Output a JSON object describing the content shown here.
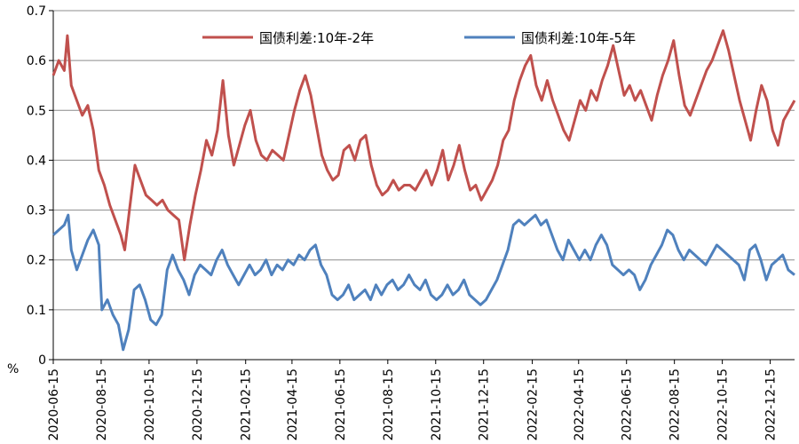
{
  "chart_data": {
    "type": "line",
    "title": "",
    "xlabel": "",
    "ylabel": "%",
    "ylim": [
      0,
      0.7
    ],
    "yticks": [
      "0",
      "0.1",
      "0.2",
      "0.3",
      "0.4",
      "0.5",
      "0.6",
      "0.7"
    ],
    "xticks": [
      "2020-06-15",
      "2020-08-15",
      "2020-10-15",
      "2020-12-15",
      "2021-02-15",
      "2021-04-15",
      "2021-06-15",
      "2021-08-15",
      "2021-10-15",
      "2021-12-15",
      "2022-02-15",
      "2022-04-15",
      "2022-06-15",
      "2022-08-15",
      "2022-10-15",
      "2022-12-15"
    ],
    "grid": "horizontal",
    "legend_position": "top",
    "x_start": "2020-06-15",
    "x_end": "2023-01-15",
    "series": [
      {
        "name": "国债利差:10年-2年",
        "color": "#c0504d",
        "points": [
          [
            "2020-06-15",
            0.57
          ],
          [
            "2020-06-22",
            0.6
          ],
          [
            "2020-06-29",
            0.58
          ],
          [
            "2020-07-03",
            0.65
          ],
          [
            "2020-07-08",
            0.55
          ],
          [
            "2020-07-15",
            0.52
          ],
          [
            "2020-07-22",
            0.49
          ],
          [
            "2020-07-29",
            0.51
          ],
          [
            "2020-08-05",
            0.46
          ],
          [
            "2020-08-12",
            0.38
          ],
          [
            "2020-08-19",
            0.35
          ],
          [
            "2020-08-26",
            0.31
          ],
          [
            "2020-09-02",
            0.28
          ],
          [
            "2020-09-09",
            0.25
          ],
          [
            "2020-09-14",
            0.22
          ],
          [
            "2020-09-20",
            0.3
          ],
          [
            "2020-09-27",
            0.39
          ],
          [
            "2020-10-04",
            0.36
          ],
          [
            "2020-10-11",
            0.33
          ],
          [
            "2020-10-18",
            0.32
          ],
          [
            "2020-10-25",
            0.31
          ],
          [
            "2020-11-01",
            0.32
          ],
          [
            "2020-11-08",
            0.3
          ],
          [
            "2020-11-15",
            0.29
          ],
          [
            "2020-11-22",
            0.28
          ],
          [
            "2020-11-29",
            0.2
          ],
          [
            "2020-12-06",
            0.27
          ],
          [
            "2020-12-13",
            0.33
          ],
          [
            "2020-12-20",
            0.38
          ],
          [
            "2020-12-27",
            0.44
          ],
          [
            "2021-01-03",
            0.41
          ],
          [
            "2021-01-10",
            0.46
          ],
          [
            "2021-01-17",
            0.56
          ],
          [
            "2021-01-24",
            0.45
          ],
          [
            "2021-01-31",
            0.39
          ],
          [
            "2021-02-07",
            0.43
          ],
          [
            "2021-02-14",
            0.47
          ],
          [
            "2021-02-21",
            0.5
          ],
          [
            "2021-02-28",
            0.44
          ],
          [
            "2021-03-07",
            0.41
          ],
          [
            "2021-03-14",
            0.4
          ],
          [
            "2021-03-21",
            0.42
          ],
          [
            "2021-03-28",
            0.41
          ],
          [
            "2021-04-04",
            0.4
          ],
          [
            "2021-04-11",
            0.45
          ],
          [
            "2021-04-18",
            0.5
          ],
          [
            "2021-04-25",
            0.54
          ],
          [
            "2021-05-02",
            0.57
          ],
          [
            "2021-05-09",
            0.53
          ],
          [
            "2021-05-16",
            0.47
          ],
          [
            "2021-05-23",
            0.41
          ],
          [
            "2021-05-30",
            0.38
          ],
          [
            "2021-06-06",
            0.36
          ],
          [
            "2021-06-13",
            0.37
          ],
          [
            "2021-06-20",
            0.42
          ],
          [
            "2021-06-27",
            0.43
          ],
          [
            "2021-07-04",
            0.4
          ],
          [
            "2021-07-11",
            0.44
          ],
          [
            "2021-07-18",
            0.45
          ],
          [
            "2021-07-25",
            0.39
          ],
          [
            "2021-08-01",
            0.35
          ],
          [
            "2021-08-08",
            0.33
          ],
          [
            "2021-08-15",
            0.34
          ],
          [
            "2021-08-22",
            0.36
          ],
          [
            "2021-08-29",
            0.34
          ],
          [
            "2021-09-05",
            0.35
          ],
          [
            "2021-09-12",
            0.35
          ],
          [
            "2021-09-19",
            0.34
          ],
          [
            "2021-09-26",
            0.36
          ],
          [
            "2021-10-03",
            0.38
          ],
          [
            "2021-10-10",
            0.35
          ],
          [
            "2021-10-17",
            0.38
          ],
          [
            "2021-10-24",
            0.42
          ],
          [
            "2021-10-31",
            0.36
          ],
          [
            "2021-11-07",
            0.39
          ],
          [
            "2021-11-14",
            0.43
          ],
          [
            "2021-11-21",
            0.38
          ],
          [
            "2021-11-28",
            0.34
          ],
          [
            "2021-12-05",
            0.35
          ],
          [
            "2021-12-12",
            0.32
          ],
          [
            "2021-12-19",
            0.34
          ],
          [
            "2021-12-26",
            0.36
          ],
          [
            "2022-01-02",
            0.39
          ],
          [
            "2022-01-09",
            0.44
          ],
          [
            "2022-01-16",
            0.46
          ],
          [
            "2022-01-23",
            0.52
          ],
          [
            "2022-01-30",
            0.56
          ],
          [
            "2022-02-06",
            0.59
          ],
          [
            "2022-02-13",
            0.61
          ],
          [
            "2022-02-20",
            0.55
          ],
          [
            "2022-02-27",
            0.52
          ],
          [
            "2022-03-06",
            0.56
          ],
          [
            "2022-03-13",
            0.52
          ],
          [
            "2022-03-20",
            0.49
          ],
          [
            "2022-03-27",
            0.46
          ],
          [
            "2022-04-03",
            0.44
          ],
          [
            "2022-04-10",
            0.48
          ],
          [
            "2022-04-17",
            0.52
          ],
          [
            "2022-04-24",
            0.5
          ],
          [
            "2022-05-01",
            0.54
          ],
          [
            "2022-05-08",
            0.52
          ],
          [
            "2022-05-15",
            0.56
          ],
          [
            "2022-05-22",
            0.59
          ],
          [
            "2022-05-29",
            0.63
          ],
          [
            "2022-06-05",
            0.58
          ],
          [
            "2022-06-12",
            0.53
          ],
          [
            "2022-06-19",
            0.55
          ],
          [
            "2022-06-26",
            0.52
          ],
          [
            "2022-07-03",
            0.54
          ],
          [
            "2022-07-10",
            0.51
          ],
          [
            "2022-07-17",
            0.48
          ],
          [
            "2022-07-24",
            0.53
          ],
          [
            "2022-07-31",
            0.57
          ],
          [
            "2022-08-07",
            0.6
          ],
          [
            "2022-08-14",
            0.64
          ],
          [
            "2022-08-21",
            0.57
          ],
          [
            "2022-08-28",
            0.51
          ],
          [
            "2022-09-04",
            0.49
          ],
          [
            "2022-09-11",
            0.52
          ],
          [
            "2022-09-18",
            0.55
          ],
          [
            "2022-09-25",
            0.58
          ],
          [
            "2022-10-02",
            0.6
          ],
          [
            "2022-10-09",
            0.63
          ],
          [
            "2022-10-16",
            0.66
          ],
          [
            "2022-10-23",
            0.62
          ],
          [
            "2022-10-30",
            0.57
          ],
          [
            "2022-11-06",
            0.52
          ],
          [
            "2022-11-13",
            0.48
          ],
          [
            "2022-11-20",
            0.44
          ],
          [
            "2022-11-27",
            0.5
          ],
          [
            "2022-12-04",
            0.55
          ],
          [
            "2022-12-11",
            0.52
          ],
          [
            "2022-12-18",
            0.46
          ],
          [
            "2022-12-25",
            0.43
          ],
          [
            "2023-01-01",
            0.48
          ],
          [
            "2023-01-08",
            0.5
          ],
          [
            "2023-01-15",
            0.52
          ]
        ]
      },
      {
        "name": "国债利差:10年-5年",
        "color": "#4f81bd",
        "points": [
          [
            "2020-06-15",
            0.25
          ],
          [
            "2020-06-22",
            0.26
          ],
          [
            "2020-06-29",
            0.27
          ],
          [
            "2020-07-04",
            0.29
          ],
          [
            "2020-07-08",
            0.22
          ],
          [
            "2020-07-15",
            0.18
          ],
          [
            "2020-07-22",
            0.21
          ],
          [
            "2020-07-29",
            0.24
          ],
          [
            "2020-08-05",
            0.26
          ],
          [
            "2020-08-12",
            0.23
          ],
          [
            "2020-08-16",
            0.1
          ],
          [
            "2020-08-23",
            0.12
          ],
          [
            "2020-08-30",
            0.09
          ],
          [
            "2020-09-06",
            0.07
          ],
          [
            "2020-09-12",
            0.02
          ],
          [
            "2020-09-19",
            0.06
          ],
          [
            "2020-09-26",
            0.14
          ],
          [
            "2020-10-03",
            0.15
          ],
          [
            "2020-10-10",
            0.12
          ],
          [
            "2020-10-17",
            0.08
          ],
          [
            "2020-10-24",
            0.07
          ],
          [
            "2020-10-31",
            0.09
          ],
          [
            "2020-11-07",
            0.18
          ],
          [
            "2020-11-14",
            0.21
          ],
          [
            "2020-11-21",
            0.18
          ],
          [
            "2020-11-28",
            0.16
          ],
          [
            "2020-12-05",
            0.13
          ],
          [
            "2020-12-12",
            0.17
          ],
          [
            "2020-12-19",
            0.19
          ],
          [
            "2020-12-26",
            0.18
          ],
          [
            "2021-01-02",
            0.17
          ],
          [
            "2021-01-09",
            0.2
          ],
          [
            "2021-01-16",
            0.22
          ],
          [
            "2021-01-23",
            0.19
          ],
          [
            "2021-01-30",
            0.17
          ],
          [
            "2021-02-06",
            0.15
          ],
          [
            "2021-02-13",
            0.17
          ],
          [
            "2021-02-20",
            0.19
          ],
          [
            "2021-02-27",
            0.17
          ],
          [
            "2021-03-06",
            0.18
          ],
          [
            "2021-03-13",
            0.2
          ],
          [
            "2021-03-20",
            0.17
          ],
          [
            "2021-03-27",
            0.19
          ],
          [
            "2021-04-03",
            0.18
          ],
          [
            "2021-04-10",
            0.2
          ],
          [
            "2021-04-17",
            0.19
          ],
          [
            "2021-04-24",
            0.21
          ],
          [
            "2021-05-01",
            0.2
          ],
          [
            "2021-05-08",
            0.22
          ],
          [
            "2021-05-15",
            0.23
          ],
          [
            "2021-05-22",
            0.19
          ],
          [
            "2021-05-29",
            0.17
          ],
          [
            "2021-06-05",
            0.13
          ],
          [
            "2021-06-12",
            0.12
          ],
          [
            "2021-06-19",
            0.13
          ],
          [
            "2021-06-26",
            0.15
          ],
          [
            "2021-07-03",
            0.12
          ],
          [
            "2021-07-10",
            0.13
          ],
          [
            "2021-07-17",
            0.14
          ],
          [
            "2021-07-24",
            0.12
          ],
          [
            "2021-07-31",
            0.15
          ],
          [
            "2021-08-07",
            0.13
          ],
          [
            "2021-08-14",
            0.15
          ],
          [
            "2021-08-21",
            0.16
          ],
          [
            "2021-08-28",
            0.14
          ],
          [
            "2021-09-04",
            0.15
          ],
          [
            "2021-09-11",
            0.17
          ],
          [
            "2021-09-18",
            0.15
          ],
          [
            "2021-09-25",
            0.14
          ],
          [
            "2021-10-02",
            0.16
          ],
          [
            "2021-10-09",
            0.13
          ],
          [
            "2021-10-16",
            0.12
          ],
          [
            "2021-10-23",
            0.13
          ],
          [
            "2021-10-30",
            0.15
          ],
          [
            "2021-11-06",
            0.13
          ],
          [
            "2021-11-13",
            0.14
          ],
          [
            "2021-11-20",
            0.16
          ],
          [
            "2021-11-27",
            0.13
          ],
          [
            "2021-12-04",
            0.12
          ],
          [
            "2021-12-11",
            0.11
          ],
          [
            "2021-12-18",
            0.12
          ],
          [
            "2021-12-25",
            0.14
          ],
          [
            "2022-01-01",
            0.16
          ],
          [
            "2022-01-08",
            0.19
          ],
          [
            "2022-01-15",
            0.22
          ],
          [
            "2022-01-22",
            0.27
          ],
          [
            "2022-01-29",
            0.28
          ],
          [
            "2022-02-05",
            0.27
          ],
          [
            "2022-02-12",
            0.28
          ],
          [
            "2022-02-19",
            0.29
          ],
          [
            "2022-02-26",
            0.27
          ],
          [
            "2022-03-05",
            0.28
          ],
          [
            "2022-03-12",
            0.25
          ],
          [
            "2022-03-19",
            0.22
          ],
          [
            "2022-03-26",
            0.2
          ],
          [
            "2022-04-02",
            0.24
          ],
          [
            "2022-04-09",
            0.22
          ],
          [
            "2022-04-16",
            0.2
          ],
          [
            "2022-04-23",
            0.22
          ],
          [
            "2022-04-30",
            0.2
          ],
          [
            "2022-05-07",
            0.23
          ],
          [
            "2022-05-14",
            0.25
          ],
          [
            "2022-05-21",
            0.23
          ],
          [
            "2022-05-28",
            0.19
          ],
          [
            "2022-06-04",
            0.18
          ],
          [
            "2022-06-11",
            0.17
          ],
          [
            "2022-06-18",
            0.18
          ],
          [
            "2022-06-25",
            0.17
          ],
          [
            "2022-07-02",
            0.14
          ],
          [
            "2022-07-09",
            0.16
          ],
          [
            "2022-07-16",
            0.19
          ],
          [
            "2022-07-23",
            0.21
          ],
          [
            "2022-07-30",
            0.23
          ],
          [
            "2022-08-06",
            0.26
          ],
          [
            "2022-08-13",
            0.25
          ],
          [
            "2022-08-20",
            0.22
          ],
          [
            "2022-08-27",
            0.2
          ],
          [
            "2022-09-03",
            0.22
          ],
          [
            "2022-09-10",
            0.21
          ],
          [
            "2022-09-17",
            0.2
          ],
          [
            "2022-09-24",
            0.19
          ],
          [
            "2022-10-01",
            0.21
          ],
          [
            "2022-10-08",
            0.23
          ],
          [
            "2022-10-15",
            0.22
          ],
          [
            "2022-10-22",
            0.21
          ],
          [
            "2022-10-29",
            0.2
          ],
          [
            "2022-11-05",
            0.19
          ],
          [
            "2022-11-12",
            0.16
          ],
          [
            "2022-11-19",
            0.22
          ],
          [
            "2022-11-26",
            0.23
          ],
          [
            "2022-12-03",
            0.2
          ],
          [
            "2022-12-10",
            0.16
          ],
          [
            "2022-12-17",
            0.19
          ],
          [
            "2022-12-24",
            0.2
          ],
          [
            "2022-12-31",
            0.21
          ],
          [
            "2023-01-07",
            0.18
          ],
          [
            "2023-01-15",
            0.17
          ]
        ]
      }
    ]
  }
}
